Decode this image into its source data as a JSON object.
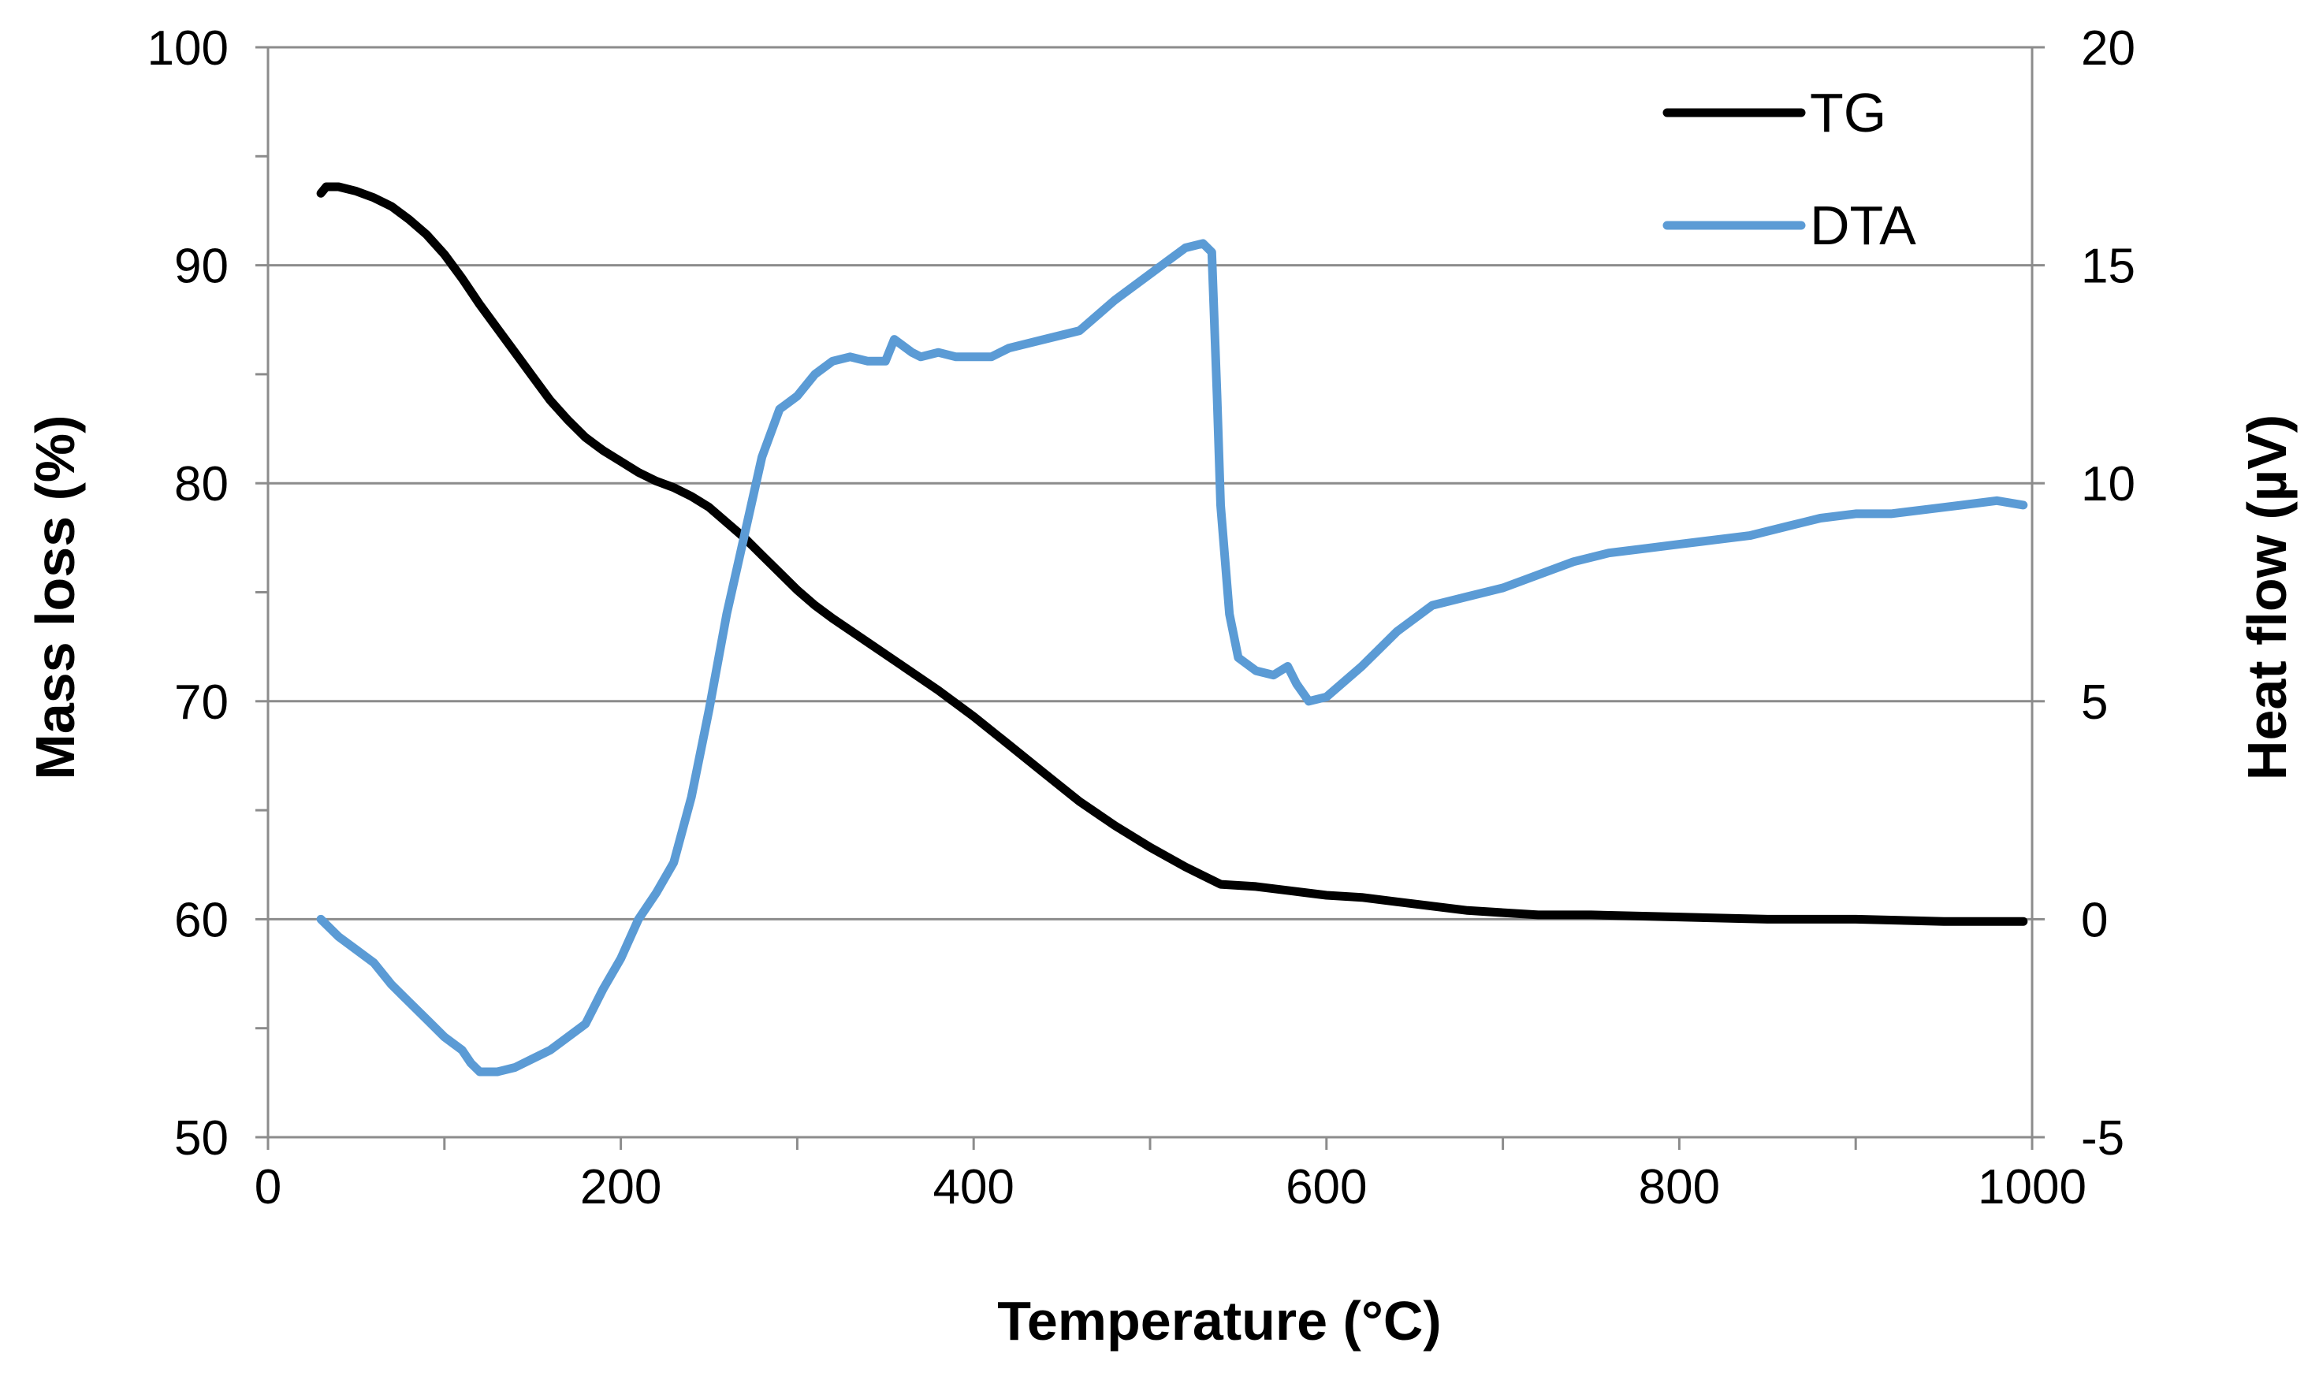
{
  "chart_data": {
    "type": "line",
    "xlabel": "Temperature (°C)",
    "ylabel_left": "Mass loss (%)",
    "ylabel_right": "Heat flow (µV)",
    "xlim": [
      0,
      1000
    ],
    "ylim_left": [
      50,
      100
    ],
    "ylim_right": [
      -5,
      20
    ],
    "x_ticks": [
      "0",
      "200",
      "400",
      "600",
      "800",
      "1000"
    ],
    "y_left_ticks": [
      "50",
      "60",
      "70",
      "80",
      "90",
      "100"
    ],
    "y_right_ticks": [
      "-5",
      "0",
      "5",
      "10",
      "15",
      "20"
    ],
    "grid": true,
    "legend_position": "top-right",
    "series": [
      {
        "name": "TG",
        "axis": "left",
        "color": "#000000",
        "x": [
          30,
          33,
          40,
          50,
          60,
          70,
          80,
          90,
          100,
          110,
          120,
          130,
          140,
          150,
          160,
          170,
          180,
          190,
          200,
          210,
          220,
          230,
          240,
          250,
          260,
          270,
          280,
          290,
          300,
          310,
          320,
          340,
          360,
          380,
          400,
          420,
          440,
          460,
          480,
          500,
          520,
          540,
          560,
          580,
          600,
          620,
          640,
          660,
          680,
          700,
          720,
          750,
          800,
          850,
          900,
          950,
          995
        ],
        "y": [
          93.3,
          93.6,
          93.6,
          93.4,
          93.1,
          92.7,
          92.1,
          91.4,
          90.5,
          89.4,
          88.2,
          87.1,
          86.0,
          84.9,
          83.8,
          82.9,
          82.1,
          81.5,
          81.0,
          80.5,
          80.1,
          79.8,
          79.4,
          78.9,
          78.2,
          77.5,
          76.7,
          75.9,
          75.1,
          74.4,
          73.8,
          72.7,
          71.6,
          70.5,
          69.3,
          68.0,
          66.7,
          65.4,
          64.3,
          63.3,
          62.4,
          61.6,
          61.5,
          61.3,
          61.1,
          61.0,
          60.8,
          60.6,
          60.4,
          60.3,
          60.2,
          60.2,
          60.1,
          60.0,
          60.0,
          59.9,
          59.9
        ]
      },
      {
        "name": "DTA",
        "axis": "right",
        "color": "#5b9bd5",
        "x": [
          30,
          40,
          50,
          60,
          70,
          80,
          90,
          100,
          110,
          115,
          120,
          125,
          130,
          140,
          150,
          160,
          170,
          180,
          190,
          200,
          210,
          220,
          230,
          240,
          250,
          260,
          270,
          280,
          290,
          300,
          310,
          320,
          330,
          340,
          350,
          355,
          365,
          370,
          380,
          390,
          400,
          410,
          420,
          440,
          460,
          480,
          500,
          510,
          520,
          530,
          535,
          538,
          540,
          545,
          550,
          560,
          570,
          578,
          583,
          590,
          600,
          620,
          640,
          660,
          680,
          700,
          720,
          740,
          760,
          780,
          800,
          820,
          840,
          860,
          880,
          900,
          920,
          940,
          960,
          980,
          995
        ],
        "y": [
          0.0,
          -0.4,
          -0.7,
          -1.0,
          -1.5,
          -1.9,
          -2.3,
          -2.7,
          -3.0,
          -3.3,
          -3.5,
          -3.5,
          -3.5,
          -3.4,
          -3.2,
          -3.0,
          -2.7,
          -2.4,
          -1.6,
          -0.9,
          0.0,
          0.6,
          1.3,
          2.8,
          4.8,
          7.0,
          8.8,
          10.6,
          11.7,
          12.0,
          12.5,
          12.8,
          12.9,
          12.8,
          12.8,
          13.3,
          13.0,
          12.9,
          13.0,
          12.9,
          12.9,
          12.9,
          13.1,
          13.3,
          13.5,
          14.2,
          14.8,
          15.1,
          15.4,
          15.5,
          15.3,
          12.0,
          9.5,
          7.0,
          6.0,
          5.7,
          5.6,
          5.8,
          5.4,
          5.0,
          5.1,
          5.8,
          6.6,
          7.2,
          7.4,
          7.6,
          7.9,
          8.2,
          8.4,
          8.5,
          8.6,
          8.7,
          8.8,
          9.0,
          9.2,
          9.3,
          9.3,
          9.4,
          9.5,
          9.6,
          9.5
        ]
      }
    ]
  }
}
